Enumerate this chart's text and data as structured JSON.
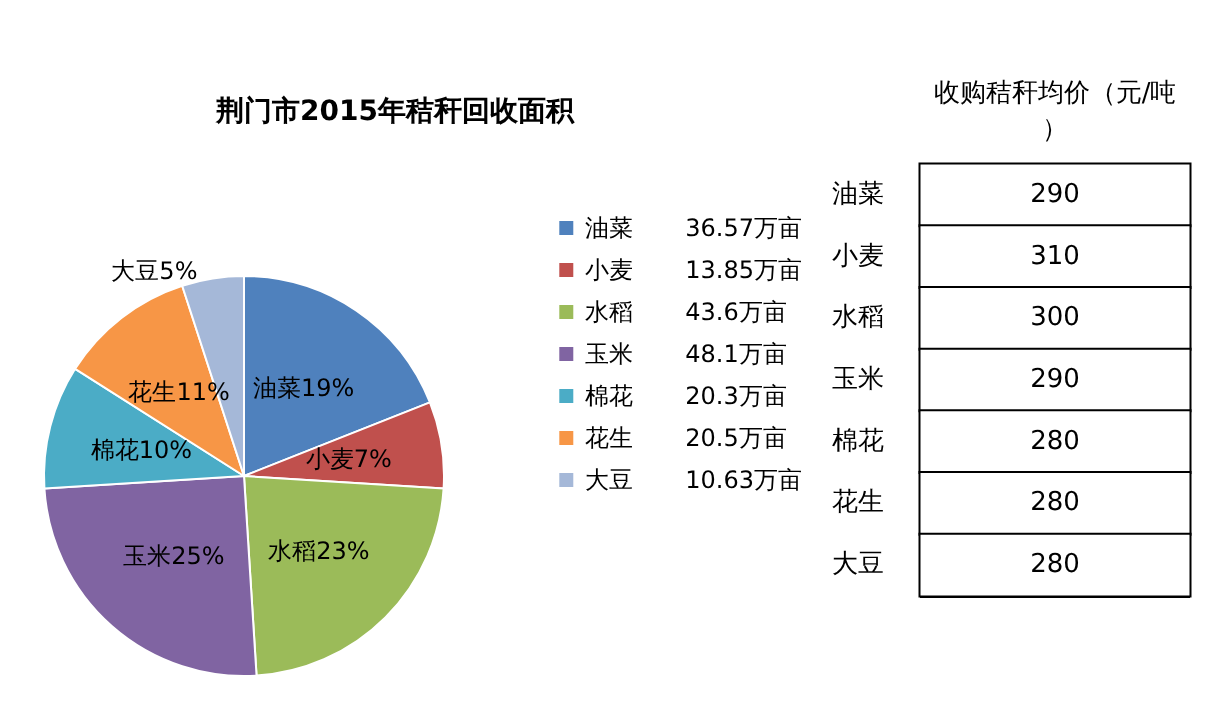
{
  "chart_data": [
    {
      "type": "pie",
      "title": "荆门市2015年秸秆回收面积",
      "categories": [
        "油菜",
        "小麦",
        "水稻",
        "玉米",
        "棉花",
        "花生",
        "大豆"
      ],
      "values": [
        19,
        7,
        23,
        25,
        10,
        11,
        5
      ],
      "value_labels": [
        "19%",
        "7%",
        "23%",
        "25%",
        "10%",
        "11%",
        "5%"
      ],
      "annotations": [
        "36.57万亩",
        "13.85万亩",
        "43.6万亩",
        "48.1万亩",
        "20.3万亩",
        "20.5万亩",
        "10.63万亩"
      ],
      "colors": [
        "#4f81bd",
        "#c0504d",
        "#9bbb59",
        "#8064a2",
        "#4bacc6",
        "#f79646",
        "#a5b8d8"
      ],
      "legend": "right"
    },
    {
      "type": "heatmap",
      "categories": [
        "收购秸秆均价（元/吨）"
      ],
      "y_categories": [
        "油菜",
        "小麦",
        "水稻",
        "玉米",
        "棉花",
        "花生",
        "大豆"
      ],
      "cells": [
        [
          290
        ],
        [
          310
        ],
        [
          300
        ],
        [
          290
        ],
        [
          280
        ],
        [
          280
        ],
        [
          280
        ]
      ],
      "data_labels": true
    }
  ]
}
